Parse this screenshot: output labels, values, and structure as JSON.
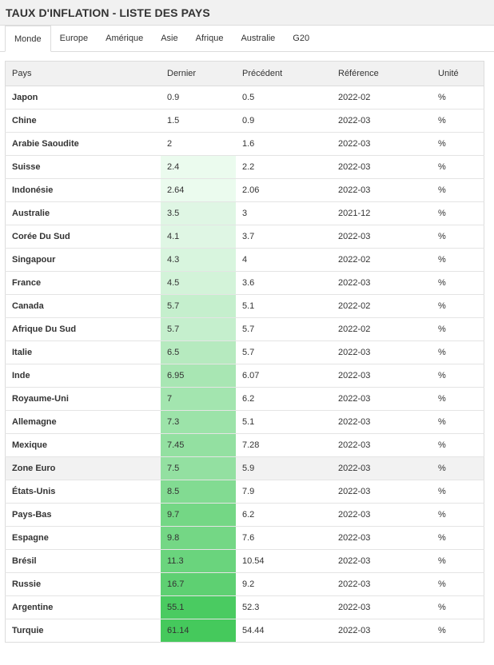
{
  "title": "TAUX D'INFLATION - LISTE DES PAYS",
  "tabs": [
    {
      "label": "Monde",
      "active": true
    },
    {
      "label": "Europe"
    },
    {
      "label": "Amérique"
    },
    {
      "label": "Asie"
    },
    {
      "label": "Afrique"
    },
    {
      "label": "Australie"
    },
    {
      "label": "G20"
    }
  ],
  "table": {
    "headers": [
      "Pays",
      "Dernier",
      "Précédent",
      "Référence",
      "Unité"
    ],
    "rows": [
      {
        "country": "Japon",
        "latest": "0.9",
        "previous": "0.5",
        "reference": "2022-02",
        "unit": "%"
      },
      {
        "country": "Chine",
        "latest": "1.5",
        "previous": "0.9",
        "reference": "2022-03",
        "unit": "%"
      },
      {
        "country": "Arabie Saoudite",
        "latest": "2",
        "previous": "1.6",
        "reference": "2022-03",
        "unit": "%"
      },
      {
        "country": "Suisse",
        "latest": "2.4",
        "previous": "2.2",
        "reference": "2022-03",
        "unit": "%"
      },
      {
        "country": "Indonésie",
        "latest": "2.64",
        "previous": "2.06",
        "reference": "2022-03",
        "unit": "%"
      },
      {
        "country": "Australie",
        "latest": "3.5",
        "previous": "3",
        "reference": "2021-12",
        "unit": "%"
      },
      {
        "country": "Corée Du Sud",
        "latest": "4.1",
        "previous": "3.7",
        "reference": "2022-03",
        "unit": "%"
      },
      {
        "country": "Singapour",
        "latest": "4.3",
        "previous": "4",
        "reference": "2022-02",
        "unit": "%"
      },
      {
        "country": "France",
        "latest": "4.5",
        "previous": "3.6",
        "reference": "2022-03",
        "unit": "%"
      },
      {
        "country": "Canada",
        "latest": "5.7",
        "previous": "5.1",
        "reference": "2022-02",
        "unit": "%"
      },
      {
        "country": "Afrique Du Sud",
        "latest": "5.7",
        "previous": "5.7",
        "reference": "2022-02",
        "unit": "%"
      },
      {
        "country": "Italie",
        "latest": "6.5",
        "previous": "5.7",
        "reference": "2022-03",
        "unit": "%"
      },
      {
        "country": "Inde",
        "latest": "6.95",
        "previous": "6.07",
        "reference": "2022-03",
        "unit": "%"
      },
      {
        "country": "Royaume-Uni",
        "latest": "7",
        "previous": "6.2",
        "reference": "2022-03",
        "unit": "%"
      },
      {
        "country": "Allemagne",
        "latest": "7.3",
        "previous": "5.1",
        "reference": "2022-03",
        "unit": "%"
      },
      {
        "country": "Mexique",
        "latest": "7.45",
        "previous": "7.28",
        "reference": "2022-03",
        "unit": "%"
      },
      {
        "country": "Zone Euro",
        "latest": "7.5",
        "previous": "5.9",
        "reference": "2022-03",
        "unit": "%",
        "highlight": true
      },
      {
        "country": "États-Unis",
        "latest": "8.5",
        "previous": "7.9",
        "reference": "2022-03",
        "unit": "%"
      },
      {
        "country": "Pays-Bas",
        "latest": "9.7",
        "previous": "6.2",
        "reference": "2022-03",
        "unit": "%"
      },
      {
        "country": "Espagne",
        "latest": "9.8",
        "previous": "7.6",
        "reference": "2022-03",
        "unit": "%"
      },
      {
        "country": "Brésil",
        "latest": "11.3",
        "previous": "10.54",
        "reference": "2022-03",
        "unit": "%"
      },
      {
        "country": "Russie",
        "latest": "16.7",
        "previous": "9.2",
        "reference": "2022-03",
        "unit": "%"
      },
      {
        "country": "Argentine",
        "latest": "55.1",
        "previous": "52.3",
        "reference": "2022-03",
        "unit": "%"
      },
      {
        "country": "Turquie",
        "latest": "61.14",
        "previous": "54.44",
        "reference": "2022-03",
        "unit": "%"
      }
    ],
    "latest_shading": [
      "",
      "",
      "",
      "#ebfbee",
      "#ebfbee",
      "#dff6e4",
      "#dff6e4",
      "#d8f5de",
      "#d3f3d9",
      "#c5efcd",
      "#c5efcd",
      "#b6eabf",
      "#a8e6b3",
      "#a3e5af",
      "#9ce3a9",
      "#93e0a1",
      "#93e0a1",
      "#82db92",
      "#74d785",
      "#74d785",
      "#6ad47d",
      "#5ed072",
      "#4acb61",
      "#45c95c"
    ]
  },
  "colors": {
    "header_bg": "#f1f1f1",
    "border": "#dcdcdc",
    "highlight_row_bg": "#f2f2f2"
  }
}
